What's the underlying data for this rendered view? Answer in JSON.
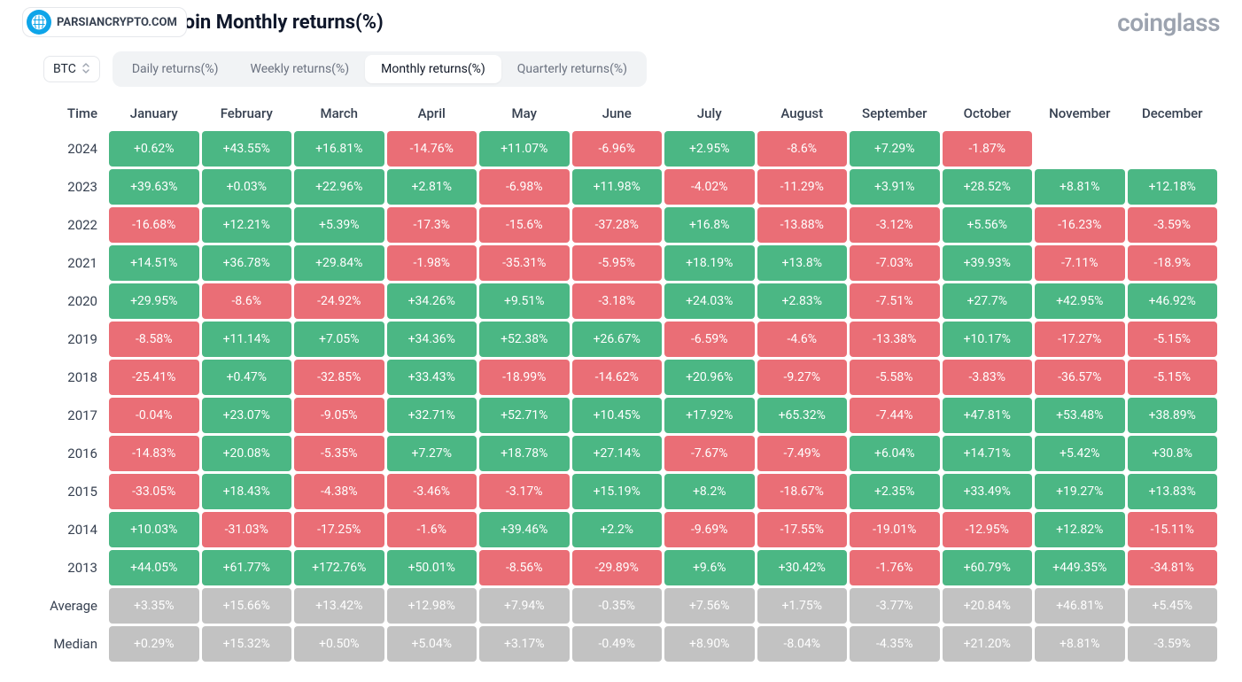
{
  "branding": {
    "watermark_label": "PARSIANCRYPTO.COM",
    "brand_label": "coinglass"
  },
  "title": "Bitcoin Monthly returns(%)",
  "asset_selector": {
    "selected": "BTC"
  },
  "tabs": {
    "items": [
      {
        "label": "Daily returns(%)",
        "active": false
      },
      {
        "label": "Weekly returns(%)",
        "active": false
      },
      {
        "label": "Monthly returns(%)",
        "active": true
      },
      {
        "label": "Quarterly returns(%)",
        "active": false
      }
    ]
  },
  "table": {
    "time_header": "Time",
    "months": [
      "January",
      "February",
      "March",
      "April",
      "May",
      "June",
      "July",
      "August",
      "September",
      "October",
      "November",
      "December"
    ],
    "colors": {
      "positive_bg": "#4bb784",
      "negative_bg": "#ea6e76",
      "summary_bg": "#c2c2c2",
      "cell_text": "#ffffff",
      "header_text": "#374151",
      "year_text": "#374151"
    },
    "rows": [
      {
        "label": "2024",
        "type": "data",
        "values": [
          "+0.62%",
          "+43.55%",
          "+16.81%",
          "-14.76%",
          "+11.07%",
          "-6.96%",
          "+2.95%",
          "-8.6%",
          "+7.29%",
          "-1.87%",
          null,
          null
        ]
      },
      {
        "label": "2023",
        "type": "data",
        "values": [
          "+39.63%",
          "+0.03%",
          "+22.96%",
          "+2.81%",
          "-6.98%",
          "+11.98%",
          "-4.02%",
          "-11.29%",
          "+3.91%",
          "+28.52%",
          "+8.81%",
          "+12.18%"
        ]
      },
      {
        "label": "2022",
        "type": "data",
        "values": [
          "-16.68%",
          "+12.21%",
          "+5.39%",
          "-17.3%",
          "-15.6%",
          "-37.28%",
          "+16.8%",
          "-13.88%",
          "-3.12%",
          "+5.56%",
          "-16.23%",
          "-3.59%"
        ]
      },
      {
        "label": "2021",
        "type": "data",
        "values": [
          "+14.51%",
          "+36.78%",
          "+29.84%",
          "-1.98%",
          "-35.31%",
          "-5.95%",
          "+18.19%",
          "+13.8%",
          "-7.03%",
          "+39.93%",
          "-7.11%",
          "-18.9%"
        ]
      },
      {
        "label": "2020",
        "type": "data",
        "values": [
          "+29.95%",
          "-8.6%",
          "-24.92%",
          "+34.26%",
          "+9.51%",
          "-3.18%",
          "+24.03%",
          "+2.83%",
          "-7.51%",
          "+27.7%",
          "+42.95%",
          "+46.92%"
        ]
      },
      {
        "label": "2019",
        "type": "data",
        "values": [
          "-8.58%",
          "+11.14%",
          "+7.05%",
          "+34.36%",
          "+52.38%",
          "+26.67%",
          "-6.59%",
          "-4.6%",
          "-13.38%",
          "+10.17%",
          "-17.27%",
          "-5.15%"
        ]
      },
      {
        "label": "2018",
        "type": "data",
        "values": [
          "-25.41%",
          "+0.47%",
          "-32.85%",
          "+33.43%",
          "-18.99%",
          "-14.62%",
          "+20.96%",
          "-9.27%",
          "-5.58%",
          "-3.83%",
          "-36.57%",
          "-5.15%"
        ]
      },
      {
        "label": "2017",
        "type": "data",
        "values": [
          "-0.04%",
          "+23.07%",
          "-9.05%",
          "+32.71%",
          "+52.71%",
          "+10.45%",
          "+17.92%",
          "+65.32%",
          "-7.44%",
          "+47.81%",
          "+53.48%",
          "+38.89%"
        ]
      },
      {
        "label": "2016",
        "type": "data",
        "values": [
          "-14.83%",
          "+20.08%",
          "-5.35%",
          "+7.27%",
          "+18.78%",
          "+27.14%",
          "-7.67%",
          "-7.49%",
          "+6.04%",
          "+14.71%",
          "+5.42%",
          "+30.8%"
        ]
      },
      {
        "label": "2015",
        "type": "data",
        "values": [
          "-33.05%",
          "+18.43%",
          "-4.38%",
          "-3.46%",
          "-3.17%",
          "+15.19%",
          "+8.2%",
          "-18.67%",
          "+2.35%",
          "+33.49%",
          "+19.27%",
          "+13.83%"
        ]
      },
      {
        "label": "2014",
        "type": "data",
        "values": [
          "+10.03%",
          "-31.03%",
          "-17.25%",
          "-1.6%",
          "+39.46%",
          "+2.2%",
          "-9.69%",
          "-17.55%",
          "-19.01%",
          "-12.95%",
          "+12.82%",
          "-15.11%"
        ]
      },
      {
        "label": "2013",
        "type": "data",
        "values": [
          "+44.05%",
          "+61.77%",
          "+172.76%",
          "+50.01%",
          "-8.56%",
          "-29.89%",
          "+9.6%",
          "+30.42%",
          "-1.76%",
          "+60.79%",
          "+449.35%",
          "-34.81%"
        ]
      },
      {
        "label": "Average",
        "type": "summary",
        "values": [
          "+3.35%",
          "+15.66%",
          "+13.42%",
          "+12.98%",
          "+7.94%",
          "-0.35%",
          "+7.56%",
          "+1.75%",
          "-3.77%",
          "+20.84%",
          "+46.81%",
          "+5.45%"
        ]
      },
      {
        "label": "Median",
        "type": "summary",
        "values": [
          "+0.29%",
          "+15.32%",
          "+0.50%",
          "+5.04%",
          "+3.17%",
          "-0.49%",
          "+8.90%",
          "-8.04%",
          "-4.35%",
          "+21.20%",
          "+8.81%",
          "-3.59%"
        ]
      }
    ]
  }
}
